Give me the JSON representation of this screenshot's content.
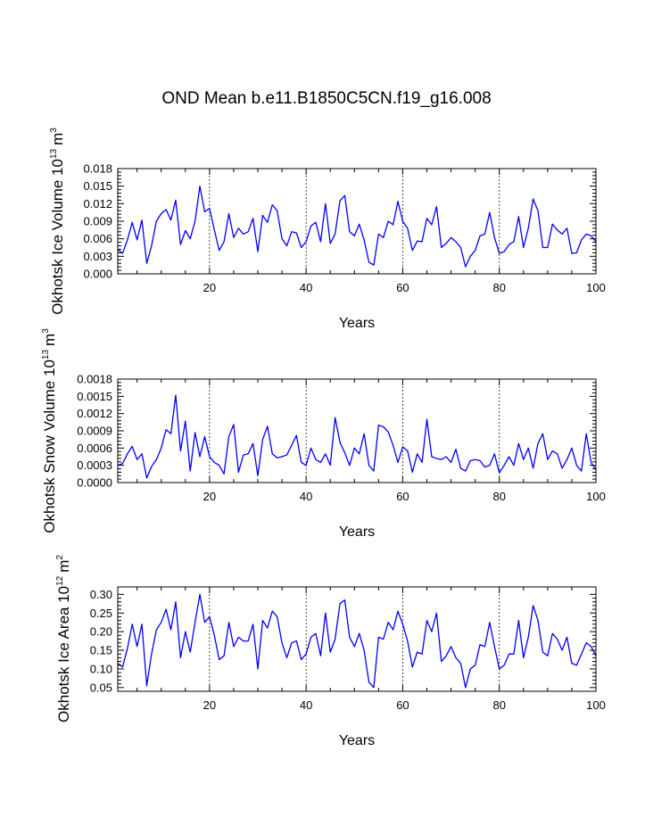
{
  "title": "OND Mean b.e11.B1850C5CN.f19_g16.008",
  "chart_data": [
    {
      "type": "line",
      "id": "ice-volume",
      "ylabel_main": "Okhotsk Ice Volume 10",
      "ylabel_exp": "13",
      "ylabel_unit": "m",
      "ylabel_unit_exp": "3",
      "xlabel": "Years",
      "xlim": [
        1,
        100
      ],
      "ylim": [
        0,
        0.018
      ],
      "x_ticks": [
        20,
        40,
        60,
        80,
        100
      ],
      "y_ticks": [
        0.0,
        0.003,
        0.006,
        0.009,
        0.012,
        0.015,
        0.018
      ],
      "y_tick_labels": [
        "0.000",
        "0.003",
        "0.006",
        "0.009",
        "0.012",
        "0.015",
        "0.018"
      ],
      "ref_lines_x": [
        20,
        40,
        60,
        80
      ],
      "line_color": "#0000ff",
      "series": [
        {
          "name": "Okhotsk Ice Volume",
          "values": [
            0.0042,
            0.0035,
            0.0058,
            0.0088,
            0.0058,
            0.0092,
            0.0018,
            0.0048,
            0.009,
            0.0103,
            0.011,
            0.0092,
            0.0126,
            0.005,
            0.0074,
            0.006,
            0.009,
            0.015,
            0.0106,
            0.0112,
            0.0075,
            0.004,
            0.0055,
            0.0103,
            0.0062,
            0.0078,
            0.0068,
            0.0072,
            0.0095,
            0.0038,
            0.01,
            0.0088,
            0.0118,
            0.0108,
            0.006,
            0.0048,
            0.0072,
            0.007,
            0.0045,
            0.0055,
            0.0082,
            0.0088,
            0.0055,
            0.012,
            0.0052,
            0.0068,
            0.0125,
            0.0134,
            0.0072,
            0.0065,
            0.0085,
            0.0058,
            0.002,
            0.0015,
            0.0068,
            0.0062,
            0.009,
            0.0084,
            0.0124,
            0.009,
            0.0078,
            0.004,
            0.0056,
            0.0055,
            0.0095,
            0.0084,
            0.0115,
            0.0045,
            0.0052,
            0.0062,
            0.0055,
            0.0045,
            0.0012,
            0.003,
            0.004,
            0.0065,
            0.0068,
            0.0105,
            0.0062,
            0.0035,
            0.0038,
            0.005,
            0.0055,
            0.0098,
            0.0045,
            0.0078,
            0.0128,
            0.0108,
            0.0045,
            0.0045,
            0.0085,
            0.0075,
            0.0068,
            0.0078,
            0.0035,
            0.0036,
            0.0058,
            0.0068,
            0.0065,
            0.0055
          ]
        }
      ]
    },
    {
      "type": "line",
      "id": "snow-volume",
      "ylabel_main": "Okhotsk Snow Volume 10",
      "ylabel_exp": "13",
      "ylabel_unit": "m",
      "ylabel_unit_exp": "3",
      "xlabel": "Years",
      "xlim": [
        1,
        100
      ],
      "ylim": [
        0,
        0.0018
      ],
      "x_ticks": [
        20,
        40,
        60,
        80,
        100
      ],
      "y_ticks": [
        0.0,
        0.0003,
        0.0006,
        0.0009,
        0.0012,
        0.0015,
        0.0018
      ],
      "y_tick_labels": [
        "0.0000",
        "0.0003",
        "0.0006",
        "0.0009",
        "0.0012",
        "0.0015",
        "0.0018"
      ],
      "ref_lines_x": [
        20,
        40,
        60,
        80
      ],
      "line_color": "#0000ff",
      "series": [
        {
          "name": "Okhotsk Snow Volume",
          "values": [
            0.0003,
            0.00033,
            0.0005,
            0.00063,
            0.0004,
            0.0005,
            8e-05,
            0.00028,
            0.0004,
            0.0006,
            0.00092,
            0.00085,
            0.00152,
            0.00055,
            0.00107,
            0.0002,
            0.00087,
            0.00045,
            0.0008,
            0.00045,
            0.00035,
            0.0003,
            0.00015,
            0.0008,
            0.00101,
            0.00018,
            0.00048,
            0.0005,
            0.00068,
            0.00012,
            0.00075,
            0.00098,
            0.0005,
            0.00043,
            0.00045,
            0.00048,
            0.00065,
            0.00082,
            0.00035,
            0.0003,
            0.0006,
            0.0004,
            0.00035,
            0.0005,
            0.0003,
            0.00113,
            0.0007,
            0.00052,
            0.0003,
            0.0006,
            0.0005,
            0.00085,
            0.0003,
            0.0002,
            0.001,
            0.00097,
            0.00088,
            0.00065,
            0.00035,
            0.00062,
            0.00055,
            0.00018,
            0.0005,
            0.00035,
            0.0011,
            0.00045,
            0.00042,
            0.0004,
            0.00045,
            0.00035,
            0.00058,
            0.00025,
            0.0002,
            0.00038,
            0.0004,
            0.00038,
            0.00027,
            0.0003,
            0.0005,
            0.00017,
            0.0003,
            0.00045,
            0.0003,
            0.00068,
            0.0004,
            0.0006,
            0.00025,
            0.00068,
            0.00085,
            0.0004,
            0.00055,
            0.0005,
            0.00025,
            0.0004,
            0.0006,
            0.0003,
            0.0002,
            0.00085,
            0.00035,
            0.00022
          ]
        }
      ]
    },
    {
      "type": "line",
      "id": "ice-area",
      "ylabel_main": "Okhotsk Ice Area 10",
      "ylabel_exp": "12",
      "ylabel_unit": "m",
      "ylabel_unit_exp": "2",
      "xlabel": "Years",
      "xlim": [
        1,
        100
      ],
      "ylim": [
        0.04,
        0.32
      ],
      "x_ticks": [
        20,
        40,
        60,
        80,
        100
      ],
      "y_ticks": [
        0.05,
        0.1,
        0.15,
        0.2,
        0.25,
        0.3
      ],
      "y_tick_labels": [
        "0.05",
        "0.10",
        "0.15",
        "0.20",
        "0.25",
        "0.30"
      ],
      "ref_lines_x": [
        20,
        40,
        60,
        80
      ],
      "line_color": "#0000ff",
      "series": [
        {
          "name": "Okhotsk Ice Area",
          "values": [
            0.115,
            0.105,
            0.155,
            0.22,
            0.16,
            0.22,
            0.055,
            0.14,
            0.205,
            0.225,
            0.26,
            0.205,
            0.28,
            0.13,
            0.2,
            0.145,
            0.225,
            0.3,
            0.225,
            0.24,
            0.19,
            0.125,
            0.135,
            0.225,
            0.16,
            0.185,
            0.175,
            0.175,
            0.22,
            0.1,
            0.23,
            0.21,
            0.255,
            0.24,
            0.17,
            0.13,
            0.17,
            0.175,
            0.125,
            0.14,
            0.185,
            0.195,
            0.135,
            0.25,
            0.145,
            0.18,
            0.275,
            0.285,
            0.185,
            0.16,
            0.195,
            0.15,
            0.065,
            0.05,
            0.185,
            0.18,
            0.225,
            0.205,
            0.255,
            0.22,
            0.175,
            0.105,
            0.145,
            0.14,
            0.23,
            0.2,
            0.25,
            0.12,
            0.135,
            0.16,
            0.13,
            0.115,
            0.05,
            0.1,
            0.11,
            0.165,
            0.16,
            0.225,
            0.16,
            0.1,
            0.11,
            0.14,
            0.14,
            0.23,
            0.13,
            0.185,
            0.27,
            0.23,
            0.145,
            0.135,
            0.195,
            0.18,
            0.15,
            0.185,
            0.115,
            0.11,
            0.14,
            0.17,
            0.16,
            0.135
          ]
        }
      ]
    }
  ]
}
